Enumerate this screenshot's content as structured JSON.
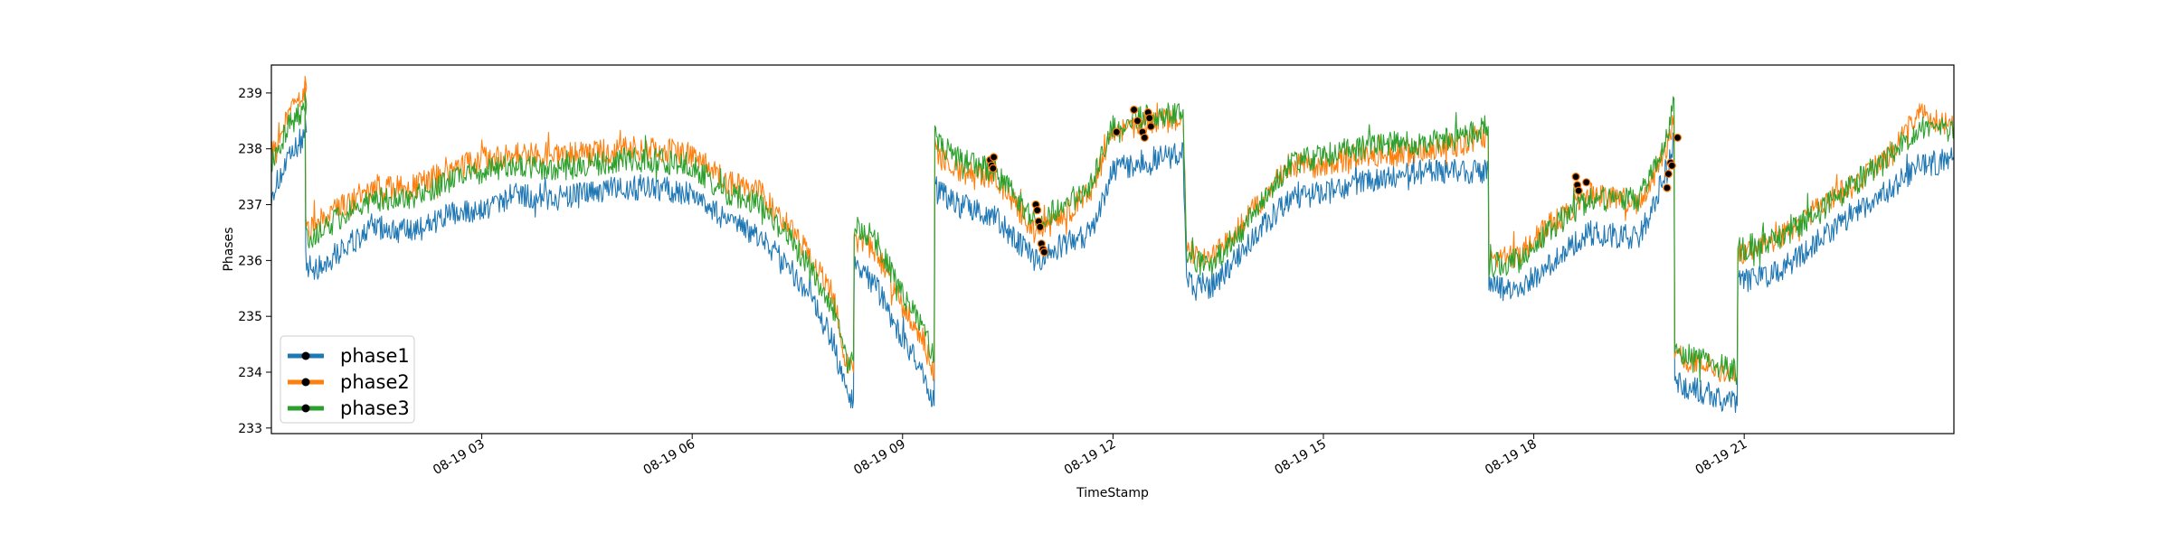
{
  "chart_data": {
    "type": "line",
    "xlabel": "TimeStamp",
    "ylabel": "Phases",
    "x_range": [
      "08-19 00:00",
      "23:59"
    ],
    "ylim": [
      232.9,
      239.5
    ],
    "x_ticks": [
      {
        "hour": 3,
        "label": "08-19 03"
      },
      {
        "hour": 6,
        "label": "08-19 06"
      },
      {
        "hour": 9,
        "label": "08-19 09"
      },
      {
        "hour": 12,
        "label": "08-19 12"
      },
      {
        "hour": 15,
        "label": "08-19 15"
      },
      {
        "hour": 18,
        "label": "08-19 18"
      },
      {
        "hour": 21,
        "label": "08-19 21"
      }
    ],
    "y_ticks": [
      {
        "value": 233,
        "label": "233"
      },
      {
        "value": 234,
        "label": "234"
      },
      {
        "value": 235,
        "label": "235"
      },
      {
        "value": 236,
        "label": "236"
      },
      {
        "value": 237,
        "label": "237"
      },
      {
        "value": 238,
        "label": "238"
      },
      {
        "value": 239,
        "label": "239"
      }
    ],
    "grid": false,
    "legend_placement": "lower-left",
    "legend_marker": "black dot on colored line",
    "x_unit": "hours since 08-19 00:00",
    "series": [
      {
        "name": "phase1",
        "color": "#1f77b4",
        "points": [
          [
            0,
            237.2
          ],
          [
            0.25,
            237.8
          ],
          [
            0.5,
            238.3
          ],
          [
            0.48,
            238.6
          ],
          [
            0.49,
            236.0
          ],
          [
            0.6,
            235.8
          ],
          [
            1.0,
            236.2
          ],
          [
            1.5,
            236.6
          ],
          [
            2.0,
            236.5
          ],
          [
            2.5,
            236.8
          ],
          [
            3.0,
            236.9
          ],
          [
            3.5,
            237.2
          ],
          [
            4.0,
            237.1
          ],
          [
            4.5,
            237.2
          ],
          [
            5.0,
            237.3
          ],
          [
            5.5,
            237.3
          ],
          [
            6.0,
            237.2
          ],
          [
            6.5,
            236.7
          ],
          [
            7.0,
            236.4
          ],
          [
            7.5,
            235.7
          ],
          [
            8.0,
            234.6
          ],
          [
            8.2,
            233.6
          ],
          [
            8.3,
            233.5
          ],
          [
            8.31,
            235.9
          ],
          [
            8.6,
            235.6
          ],
          [
            9.0,
            234.6
          ],
          [
            9.3,
            234.0
          ],
          [
            9.45,
            233.4
          ],
          [
            9.46,
            237.3
          ],
          [
            9.8,
            237.0
          ],
          [
            10.3,
            236.8
          ],
          [
            10.9,
            236.0
          ],
          [
            11.3,
            236.3
          ],
          [
            11.7,
            236.5
          ],
          [
            12.0,
            237.6
          ],
          [
            12.5,
            237.8
          ],
          [
            13.0,
            237.9
          ],
          [
            13.05,
            235.6
          ],
          [
            13.4,
            235.5
          ],
          [
            14.0,
            236.4
          ],
          [
            14.5,
            237.1
          ],
          [
            15.0,
            237.2
          ],
          [
            15.5,
            237.4
          ],
          [
            16.0,
            237.5
          ],
          [
            16.5,
            237.6
          ],
          [
            17.0,
            237.6
          ],
          [
            17.35,
            237.6
          ],
          [
            17.36,
            235.5
          ],
          [
            17.8,
            235.5
          ],
          [
            18.2,
            235.9
          ],
          [
            18.8,
            236.5
          ],
          [
            19.5,
            236.4
          ],
          [
            19.9,
            237.6
          ],
          [
            20.0,
            238.2
          ],
          [
            20.01,
            233.8
          ],
          [
            20.5,
            233.6
          ],
          [
            20.9,
            233.4
          ],
          [
            20.91,
            235.6
          ],
          [
            21.5,
            235.8
          ],
          [
            22.0,
            236.3
          ],
          [
            22.5,
            236.8
          ],
          [
            23.0,
            237.2
          ],
          [
            23.5,
            237.7
          ],
          [
            23.99,
            237.8
          ]
        ]
      },
      {
        "name": "phase2",
        "color": "#ff7f0e",
        "points": [
          [
            0,
            238.0
          ],
          [
            0.25,
            238.6
          ],
          [
            0.5,
            239.1
          ],
          [
            0.48,
            239.3
          ],
          [
            0.49,
            236.6
          ],
          [
            0.6,
            236.6
          ],
          [
            1.0,
            237.0
          ],
          [
            1.5,
            237.3
          ],
          [
            2.0,
            237.3
          ],
          [
            2.5,
            237.6
          ],
          [
            3.0,
            237.8
          ],
          [
            3.5,
            237.9
          ],
          [
            4.0,
            237.9
          ],
          [
            4.5,
            237.9
          ],
          [
            5.0,
            238.0
          ],
          [
            5.5,
            238.0
          ],
          [
            6.0,
            237.9
          ],
          [
            6.5,
            237.4
          ],
          [
            7.0,
            237.2
          ],
          [
            7.5,
            236.4
          ],
          [
            8.0,
            235.4
          ],
          [
            8.2,
            234.2
          ],
          [
            8.3,
            234.0
          ],
          [
            8.31,
            236.4
          ],
          [
            8.6,
            236.2
          ],
          [
            9.0,
            235.2
          ],
          [
            9.3,
            234.6
          ],
          [
            9.45,
            233.9
          ],
          [
            9.46,
            237.9
          ],
          [
            9.8,
            237.6
          ],
          [
            10.3,
            237.5
          ],
          [
            10.9,
            236.5
          ],
          [
            11.3,
            236.8
          ],
          [
            11.7,
            237.3
          ],
          [
            12.0,
            238.3
          ],
          [
            12.5,
            238.5
          ],
          [
            13.0,
            238.5
          ],
          [
            13.05,
            236.2
          ],
          [
            13.4,
            236.0
          ],
          [
            14.0,
            236.9
          ],
          [
            14.5,
            237.7
          ],
          [
            15.0,
            237.7
          ],
          [
            15.5,
            237.9
          ],
          [
            16.0,
            237.9
          ],
          [
            16.5,
            238.0
          ],
          [
            17.0,
            238.1
          ],
          [
            17.35,
            238.2
          ],
          [
            17.36,
            236.0
          ],
          [
            17.8,
            236.1
          ],
          [
            18.2,
            236.6
          ],
          [
            18.8,
            237.2
          ],
          [
            19.5,
            237.0
          ],
          [
            19.9,
            238.0
          ],
          [
            20.0,
            238.6
          ],
          [
            20.01,
            234.3
          ],
          [
            20.5,
            234.1
          ],
          [
            20.9,
            233.9
          ],
          [
            20.91,
            236.1
          ],
          [
            21.5,
            236.4
          ],
          [
            22.0,
            236.9
          ],
          [
            22.5,
            237.3
          ],
          [
            23.0,
            237.8
          ],
          [
            23.5,
            238.6
          ],
          [
            23.99,
            238.4
          ]
        ]
      },
      {
        "name": "phase3",
        "color": "#2ca02c",
        "points": [
          [
            0,
            237.8
          ],
          [
            0.25,
            238.4
          ],
          [
            0.5,
            238.8
          ],
          [
            0.48,
            239.0
          ],
          [
            0.49,
            236.4
          ],
          [
            0.6,
            236.4
          ],
          [
            1.0,
            236.8
          ],
          [
            1.5,
            237.1
          ],
          [
            2.0,
            237.1
          ],
          [
            2.5,
            237.4
          ],
          [
            3.0,
            237.6
          ],
          [
            3.5,
            237.7
          ],
          [
            4.0,
            237.6
          ],
          [
            4.5,
            237.7
          ],
          [
            5.0,
            237.8
          ],
          [
            5.5,
            237.8
          ],
          [
            6.0,
            237.7
          ],
          [
            6.5,
            237.2
          ],
          [
            7.0,
            237.0
          ],
          [
            7.5,
            236.2
          ],
          [
            8.0,
            235.2
          ],
          [
            8.2,
            234.2
          ],
          [
            8.3,
            234.2
          ],
          [
            8.31,
            236.6
          ],
          [
            8.6,
            236.4
          ],
          [
            9.0,
            235.4
          ],
          [
            9.3,
            234.8
          ],
          [
            9.45,
            234.2
          ],
          [
            9.46,
            238.2
          ],
          [
            9.8,
            237.8
          ],
          [
            10.3,
            237.6
          ],
          [
            10.9,
            236.7
          ],
          [
            11.3,
            237.0
          ],
          [
            11.7,
            237.4
          ],
          [
            12.0,
            238.4
          ],
          [
            12.5,
            238.6
          ],
          [
            13.0,
            238.6
          ],
          [
            13.05,
            236.0
          ],
          [
            13.4,
            235.9
          ],
          [
            14.0,
            236.8
          ],
          [
            14.5,
            237.7
          ],
          [
            15.0,
            237.9
          ],
          [
            15.5,
            238.0
          ],
          [
            16.0,
            238.1
          ],
          [
            16.5,
            238.1
          ],
          [
            17.0,
            238.2
          ],
          [
            17.35,
            238.4
          ],
          [
            17.36,
            235.9
          ],
          [
            17.8,
            236.0
          ],
          [
            18.2,
            236.5
          ],
          [
            18.8,
            237.1
          ],
          [
            19.5,
            237.1
          ],
          [
            19.9,
            238.2
          ],
          [
            20.0,
            238.9
          ],
          [
            20.01,
            234.4
          ],
          [
            20.5,
            234.2
          ],
          [
            20.9,
            234.0
          ],
          [
            20.91,
            236.2
          ],
          [
            21.5,
            236.4
          ],
          [
            22.0,
            236.8
          ],
          [
            22.5,
            237.3
          ],
          [
            23.0,
            237.8
          ],
          [
            23.5,
            238.4
          ],
          [
            23.99,
            238.3
          ]
        ]
      }
    ],
    "marked_points": {
      "color": "#000000",
      "points": [
        [
          10.25,
          237.8
        ],
        [
          10.27,
          237.7
        ],
        [
          10.29,
          237.65
        ],
        [
          10.3,
          237.85
        ],
        [
          10.9,
          237.0
        ],
        [
          10.92,
          236.9
        ],
        [
          10.94,
          236.7
        ],
        [
          10.96,
          236.6
        ],
        [
          10.98,
          236.3
        ],
        [
          11.0,
          236.2
        ],
        [
          11.02,
          236.15
        ],
        [
          12.05,
          238.3
        ],
        [
          12.3,
          238.7
        ],
        [
          12.35,
          238.5
        ],
        [
          12.42,
          238.3
        ],
        [
          12.45,
          238.2
        ],
        [
          12.5,
          238.65
        ],
        [
          12.52,
          238.55
        ],
        [
          12.54,
          238.4
        ],
        [
          18.6,
          237.5
        ],
        [
          18.62,
          237.35
        ],
        [
          18.64,
          237.25
        ],
        [
          18.75,
          237.4
        ],
        [
          19.9,
          237.3
        ],
        [
          19.92,
          237.55
        ],
        [
          19.95,
          237.75
        ],
        [
          19.97,
          237.7
        ],
        [
          20.05,
          238.2
        ]
      ]
    }
  }
}
